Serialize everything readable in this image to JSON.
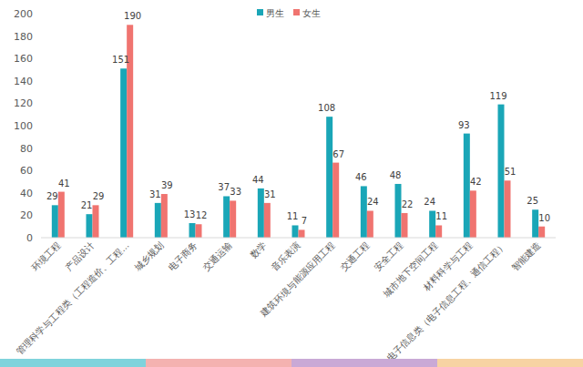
{
  "chart_data": {
    "type": "bar",
    "categories": [
      "环境工程",
      "产品设计",
      "管理科学与工程类（工程造价、工程...",
      "城乡规划",
      "电子商务",
      "交通运输",
      "数学",
      "音乐表演",
      "建筑环境与能源应用工程",
      "交通工程",
      "安全工程",
      "城市地下空间工程",
      "材料科学与工程",
      "电子信息类（电子信息工程、通信工程）",
      "智能建造"
    ],
    "series": [
      {
        "name": "男生",
        "color": "#1aa6b7",
        "values": [
          29,
          21,
          151,
          31,
          13,
          37,
          44,
          11,
          108,
          46,
          48,
          24,
          93,
          119,
          25
        ]
      },
      {
        "name": "女生",
        "color": "#f07470",
        "values": [
          41,
          29,
          190,
          39,
          12,
          33,
          31,
          7,
          67,
          24,
          22,
          11,
          42,
          51,
          10
        ]
      }
    ],
    "ylim": [
      0,
      200
    ],
    "yticks": [
      0,
      20,
      40,
      60,
      80,
      100,
      120,
      140,
      160,
      180,
      200
    ],
    "grid": false,
    "legend": "top",
    "data_labels": true
  }
}
